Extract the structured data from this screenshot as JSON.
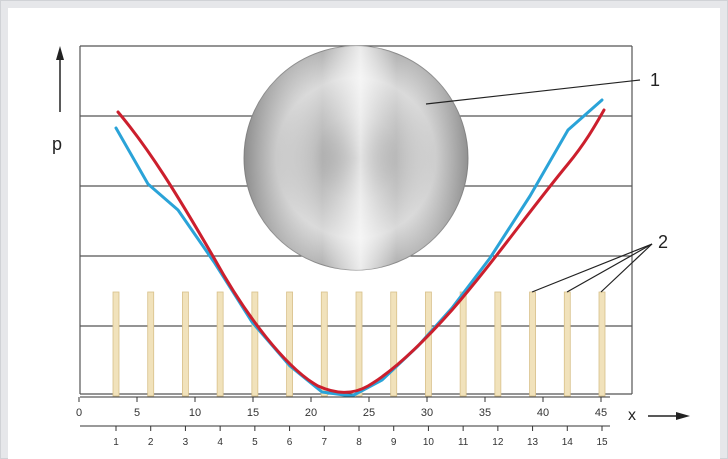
{
  "diagram": {
    "y_axis_label": "p",
    "x_axis_label": "x",
    "top_scale_ticks": [
      "0",
      "5",
      "10",
      "15",
      "20",
      "25",
      "30",
      "35",
      "40",
      "45"
    ],
    "bottom_scale_ticks": [
      "1",
      "2",
      "3",
      "4",
      "5",
      "6",
      "7",
      "8",
      "9",
      "10",
      "11",
      "12",
      "13",
      "14",
      "15"
    ],
    "callout_1": "1",
    "callout_2": "2",
    "colors": {
      "background": "#e6e7ea",
      "panel": "#ffffff",
      "grid_lines": "#555555",
      "red_curve": "#cc1f2d",
      "blue_curve": "#2aa3d8",
      "bars": "#f1e2bb",
      "bar_edge": "#d8c08a",
      "disc_dark": "#7d7d7d",
      "disc_light": "#f2f2f2"
    },
    "icons": {
      "y_axis_arrow": "arrow-up-icon",
      "x_axis_arrow": "arrow-right-icon"
    }
  }
}
